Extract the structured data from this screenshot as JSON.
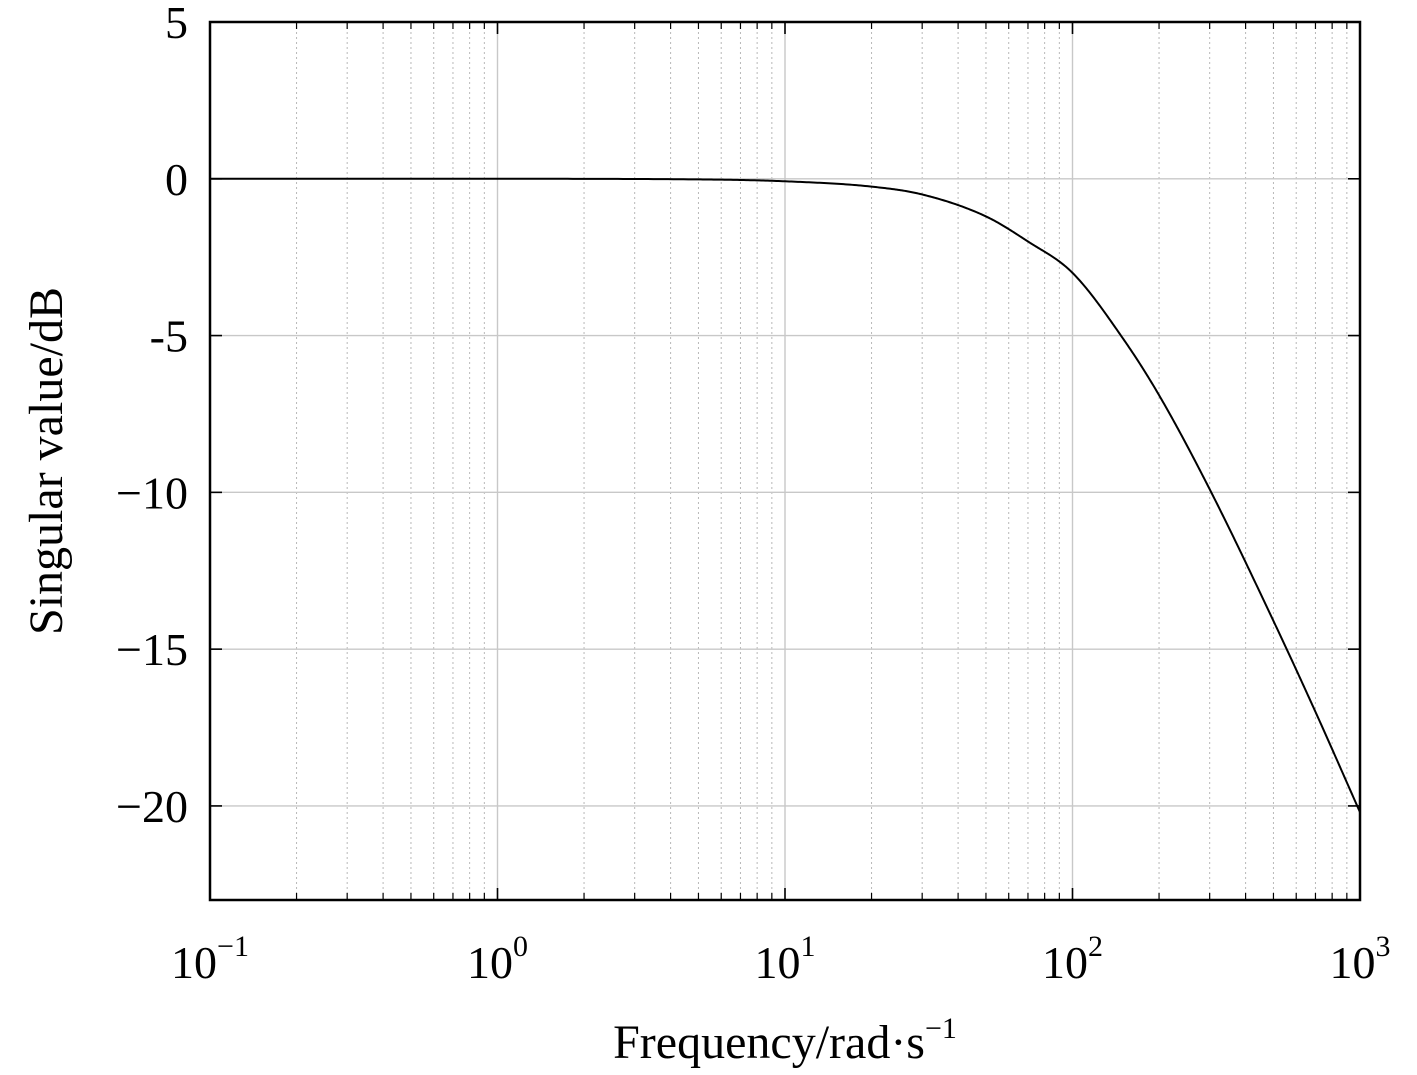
{
  "chart_data": {
    "type": "line",
    "title": "",
    "xlabel": "Frequency/rad·s",
    "xlabel_superscript": "−1",
    "ylabel": "Singular value/dB",
    "xscale": "log",
    "xlim": [
      0.1,
      1000
    ],
    "ylim": [
      -23,
      5
    ],
    "grid": true,
    "x_ticks": [
      {
        "base": "10",
        "exp": "−1",
        "value": 0.1
      },
      {
        "base": "10",
        "exp": "0",
        "value": 1
      },
      {
        "base": "10",
        "exp": "1",
        "value": 10
      },
      {
        "base": "10",
        "exp": "2",
        "value": 100
      },
      {
        "base": "10",
        "exp": "3",
        "value": 1000
      }
    ],
    "y_ticks": [
      {
        "label": "5",
        "value": 5
      },
      {
        "label": "0",
        "value": 0
      },
      {
        "label": "-5",
        "value": -5
      },
      {
        "label": "−10",
        "value": -10
      },
      {
        "label": "−15",
        "value": -15
      },
      {
        "label": "−20",
        "value": -20
      }
    ],
    "series": [
      {
        "color": "#000000",
        "x": [
          0.1,
          1,
          5,
          10,
          20,
          30,
          50,
          70,
          100,
          150,
          200,
          300,
          500,
          700,
          1000
        ],
        "y": [
          0,
          0,
          -0.02,
          -0.08,
          -0.25,
          -0.5,
          -1.2,
          -2.0,
          -3.0,
          -5.1,
          -6.9,
          -9.9,
          -14.1,
          -17.0,
          -20.2
        ]
      }
    ]
  }
}
